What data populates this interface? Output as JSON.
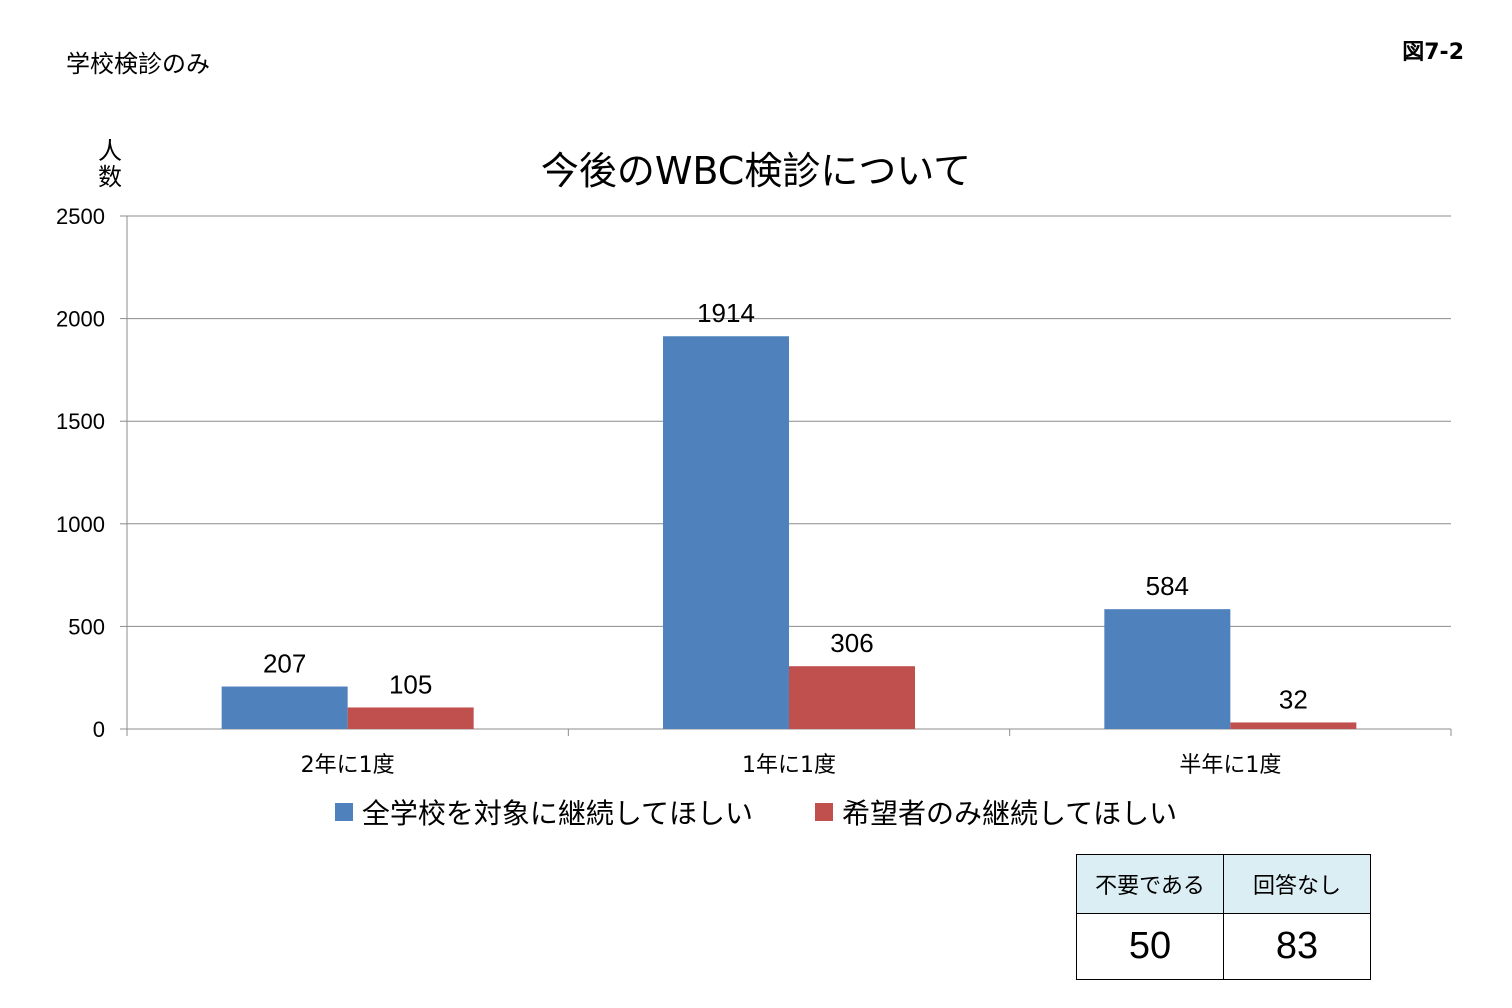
{
  "page": {
    "subtitle": "学校検診のみ",
    "figure_no": "図7-2"
  },
  "chart_data": {
    "type": "bar",
    "title": "今後のWBC検診について",
    "ylabel": "人数",
    "xlabel": "",
    "categories": [
      "2年に1度",
      "1年に1度",
      "半年に1度"
    ],
    "series": [
      {
        "name": "全学校を対象に継続してほしい",
        "values": [
          207,
          1914,
          584
        ],
        "color": "#4f81bd"
      },
      {
        "name": "希望者のみ継続してほしい",
        "values": [
          105,
          306,
          32
        ],
        "color": "#c0504d"
      }
    ],
    "ylim": [
      0,
      2500
    ],
    "yticks": [
      0,
      500,
      1000,
      1500,
      2000,
      2500
    ],
    "grid": true,
    "legend_position": "bottom",
    "data_labels": true
  },
  "extra_table": {
    "headers": [
      "不要である",
      "回答なし"
    ],
    "values": [
      "50",
      "83"
    ]
  }
}
